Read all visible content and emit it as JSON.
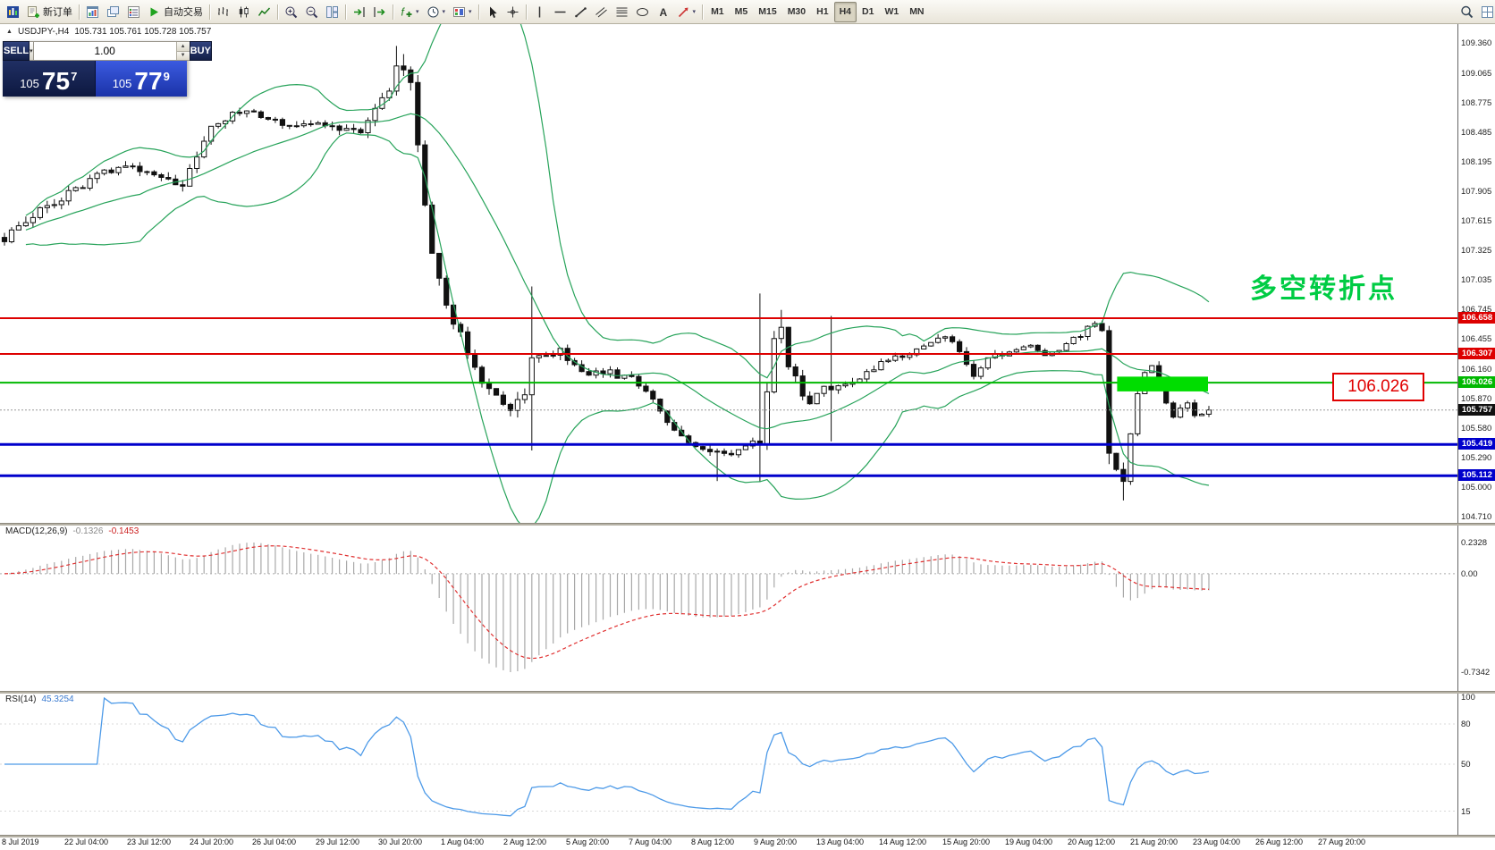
{
  "toolbar": {
    "active_timeframe": "H4",
    "items": [
      {
        "type": "button",
        "name": "app-menu-button",
        "icon": "app-logo"
      },
      {
        "type": "button",
        "name": "new-order-button",
        "icon": "new-order",
        "label": "新订单"
      },
      {
        "type": "sep"
      },
      {
        "type": "button",
        "name": "chart-windows-button",
        "icon": "chart-window"
      },
      {
        "type": "button",
        "name": "profiles-button",
        "icon": "cascade-windows"
      },
      {
        "type": "button",
        "name": "market-watch-button",
        "icon": "market-watch"
      },
      {
        "type": "button",
        "name": "autotrading-button",
        "icon": "autotrade-play",
        "label": "自动交易"
      },
      {
        "type": "sep"
      },
      {
        "type": "button",
        "name": "bar-chart-button",
        "icon": "ohlc-bars"
      },
      {
        "type": "button",
        "name": "candlestick-chart-button",
        "icon": "candlesticks"
      },
      {
        "type": "button",
        "name": "line-chart-button",
        "icon": "line-chart"
      },
      {
        "type": "sep"
      },
      {
        "type": "button",
        "name": "zoom-in-button",
        "icon": "zoom-in"
      },
      {
        "type": "button",
        "name": "zoom-out-button",
        "icon": "zoom-out"
      },
      {
        "type": "button",
        "name": "tile-windows-button",
        "icon": "tile-windows"
      },
      {
        "type": "sep"
      },
      {
        "type": "button",
        "name": "auto-scroll-button",
        "icon": "auto-scroll"
      },
      {
        "type": "button",
        "name": "chart-shift-button",
        "icon": "chart-shift"
      },
      {
        "type": "sep"
      },
      {
        "type": "button",
        "name": "indicators-button",
        "icon": "function-plus",
        "caret": true
      },
      {
        "type": "button",
        "name": "periods-button",
        "icon": "clock",
        "caret": true
      },
      {
        "type": "button",
        "name": "templates-button",
        "icon": "template",
        "caret": true
      },
      {
        "type": "sep"
      },
      {
        "type": "button",
        "name": "cursor-button",
        "icon": "cursor-arrow"
      },
      {
        "type": "button",
        "name": "crosshair-button",
        "icon": "crosshair"
      },
      {
        "type": "sep"
      },
      {
        "type": "button",
        "name": "vertical-line-button",
        "icon": "vertical-line"
      },
      {
        "type": "button",
        "name": "horizontal-line-button",
        "icon": "horizontal-line"
      },
      {
        "type": "button",
        "name": "trendline-button",
        "icon": "trend-line"
      },
      {
        "type": "button",
        "name": "equidistant-channel-button",
        "icon": "channel"
      },
      {
        "type": "button",
        "name": "fibonacci-button",
        "icon": "fibonacci"
      },
      {
        "type": "button",
        "name": "shapes-button",
        "icon": "ellipse"
      },
      {
        "type": "button",
        "name": "text-label-button",
        "icon": "text-a"
      },
      {
        "type": "button",
        "name": "arrows-button",
        "icon": "arrow",
        "caret": true
      },
      {
        "type": "sep"
      },
      {
        "type": "tf",
        "label": "M1"
      },
      {
        "type": "tf",
        "label": "M5"
      },
      {
        "type": "tf",
        "label": "M15"
      },
      {
        "type": "tf",
        "label": "M30"
      },
      {
        "type": "tf",
        "label": "H1"
      },
      {
        "type": "tf",
        "label": "H4"
      },
      {
        "type": "tf",
        "label": "D1"
      },
      {
        "type": "tf",
        "label": "W1"
      },
      {
        "type": "tf",
        "label": "MN"
      },
      {
        "type": "spacer"
      },
      {
        "type": "button",
        "name": "search-button",
        "icon": "magnifier"
      },
      {
        "type": "button",
        "name": "data-window-button",
        "icon": "data-window"
      }
    ]
  },
  "chart": {
    "expand_marker": "▲",
    "title": "USDJPY-,H4",
    "ohlc": "105.731 105.761 105.728 105.757"
  },
  "trade_panel": {
    "sell_label": "SELL",
    "buy_label": "BUY",
    "volume": "1.00",
    "sell_price": {
      "small": "105",
      "big": "75",
      "sup": "7"
    },
    "buy_price": {
      "small": "105",
      "big": "77",
      "sup": "9"
    }
  },
  "price_scale": {
    "ticks": [
      "109.360",
      "109.065",
      "108.775",
      "108.485",
      "108.195",
      "107.905",
      "107.615",
      "107.325",
      "107.035",
      "106.745",
      "106.455",
      "106.160",
      "105.870",
      "105.580",
      "105.290",
      "105.000",
      "104.710"
    ]
  },
  "levels": [
    {
      "price": 106.658,
      "label": "106.658",
      "color": "#dd0000",
      "width": 2
    },
    {
      "price": 106.307,
      "label": "106.307",
      "color": "#dd0000",
      "width": 2
    },
    {
      "price": 106.026,
      "label": "106.026",
      "color": "#00b800",
      "width": 2
    },
    {
      "price": 105.419,
      "label": "105.419",
      "color": "#0000cc",
      "width": 3
    },
    {
      "price": 105.112,
      "label": "105.112",
      "color": "#0000cc",
      "width": 3
    }
  ],
  "current_price": {
    "value": 105.757,
    "label": "105.757"
  },
  "annotations": {
    "cn_text": "多空转折点",
    "price_callout": "106.026",
    "green_box": {
      "i0": 156.5,
      "i1": 168.5,
      "p_top": 106.085,
      "p_bot": 105.94,
      "color": "#00dd00"
    }
  },
  "macd": {
    "name": "MACD(12,26,9)",
    "value_main": "-0.1326",
    "value_signal": "-0.1453",
    "ticks": [
      "0.2328",
      "0.00",
      "-0.7342"
    ]
  },
  "rsi": {
    "name": "RSI(14)",
    "value": "45.3254",
    "ticks": [
      "100",
      "80",
      "50",
      "15"
    ]
  },
  "time_axis": {
    "labels": [
      "8 Jul 2019",
      "22 Jul 04:00",
      "23 Jul 12:00",
      "24 Jul 20:00",
      "26 Jul 04:00",
      "29 Jul 12:00",
      "30 Jul 20:00",
      "1 Aug 04:00",
      "2 Aug 12:00",
      "5 Aug 20:00",
      "7 Aug 04:00",
      "8 Aug 12:00",
      "9 Aug 20:00",
      "13 Aug 04:00",
      "14 Aug 12:00",
      "15 Aug 20:00",
      "19 Aug 04:00",
      "20 Aug 12:00",
      "21 Aug 20:00",
      "23 Aug 04:00",
      "26 Aug 12:00",
      "27 Aug 20:00"
    ]
  },
  "chart_data": {
    "type": "candlestick",
    "symbol": "USDJPY-",
    "period": "H4",
    "title": "USDJPY-,H4",
    "ylim": [
      104.71,
      109.36
    ],
    "n_candles": 170,
    "last_close": 105.757,
    "seed": 20190827,
    "bollinger": {
      "period": 20,
      "dev": 2
    },
    "macd_params": {
      "fast": 12,
      "slow": 26,
      "signal": 9
    },
    "rsi_period": 14,
    "macd_axis": {
      "max": 0.2328,
      "min": -0.7342
    },
    "horizontal_levels": [
      106.658,
      106.307,
      106.026,
      105.419,
      105.112
    ],
    "price_anchors": [
      [
        0,
        107.45,
        0.1
      ],
      [
        5,
        107.7,
        0.1
      ],
      [
        12,
        108.0,
        0.1
      ],
      [
        16,
        108.15,
        0.09
      ],
      [
        20,
        108.1,
        0.08
      ],
      [
        25,
        107.95,
        0.09
      ],
      [
        29,
        108.55,
        0.09
      ],
      [
        33,
        108.7,
        0.08
      ],
      [
        39,
        108.55,
        0.08
      ],
      [
        44,
        108.6,
        0.08
      ],
      [
        50,
        108.45,
        0.08
      ],
      [
        54,
        108.9,
        0.14
      ],
      [
        55,
        109.15,
        0.16
      ],
      [
        57,
        109.0,
        0.16
      ],
      [
        58,
        108.3,
        0.22
      ],
      [
        60,
        107.35,
        0.18
      ],
      [
        61,
        107.0,
        0.14
      ],
      [
        63,
        106.6,
        0.12
      ],
      [
        65,
        106.35,
        0.12
      ],
      [
        67,
        106.05,
        0.12
      ],
      [
        69,
        105.95,
        0.12
      ],
      [
        71,
        105.7,
        0.14
      ],
      [
        73,
        105.9,
        0.18
      ],
      [
        74,
        106.35,
        0.18
      ],
      [
        76,
        106.3,
        0.1
      ],
      [
        78,
        106.35,
        0.09
      ],
      [
        81,
        106.1,
        0.09
      ],
      [
        83,
        106.15,
        0.08
      ],
      [
        86,
        106.1,
        0.08
      ],
      [
        88,
        106.05,
        0.08
      ],
      [
        91,
        105.85,
        0.08
      ],
      [
        94,
        105.55,
        0.09
      ],
      [
        96,
        105.45,
        0.08
      ],
      [
        99,
        105.35,
        0.08
      ],
      [
        101,
        105.3,
        0.08
      ],
      [
        104,
        105.4,
        0.08
      ],
      [
        106,
        105.45,
        0.16
      ],
      [
        107,
        105.9,
        0.18
      ],
      [
        108,
        106.45,
        0.14
      ],
      [
        109,
        106.55,
        0.1
      ],
      [
        110,
        106.2,
        0.12
      ],
      [
        112,
        105.9,
        0.1
      ],
      [
        113,
        105.85,
        0.08
      ],
      [
        115,
        106.0,
        0.1
      ],
      [
        116,
        105.95,
        0.12
      ],
      [
        118,
        106.0,
        0.08
      ],
      [
        121,
        106.1,
        0.08
      ],
      [
        124,
        106.25,
        0.07
      ],
      [
        127,
        106.3,
        0.07
      ],
      [
        129,
        106.4,
        0.07
      ],
      [
        132,
        106.45,
        0.07
      ],
      [
        134,
        106.35,
        0.07
      ],
      [
        136,
        106.1,
        0.08
      ],
      [
        138,
        106.25,
        0.07
      ],
      [
        141,
        106.35,
        0.07
      ],
      [
        143,
        106.4,
        0.06
      ],
      [
        146,
        106.3,
        0.06
      ],
      [
        149,
        106.4,
        0.06
      ],
      [
        151,
        106.5,
        0.06
      ],
      [
        153,
        106.6,
        0.07
      ],
      [
        154,
        106.5,
        0.1
      ],
      [
        155,
        105.4,
        0.22
      ],
      [
        156,
        105.2,
        0.14
      ],
      [
        157,
        105.1,
        0.12
      ],
      [
        158,
        105.55,
        0.12
      ],
      [
        159,
        105.9,
        0.1
      ],
      [
        160,
        106.1,
        0.08
      ],
      [
        161,
        106.2,
        0.08
      ],
      [
        162,
        106.05,
        0.08
      ],
      [
        163,
        105.8,
        0.08
      ],
      [
        164,
        105.7,
        0.07
      ],
      [
        166,
        105.8,
        0.06
      ],
      [
        167,
        105.72,
        0.06
      ],
      [
        169,
        105.757,
        0.05
      ]
    ],
    "spikes": [
      {
        "i": 55,
        "high": 109.33
      },
      {
        "i": 56,
        "high": 109.25
      },
      {
        "i": 74,
        "high": 106.97,
        "low": 105.36
      },
      {
        "i": 100,
        "low": 105.06
      },
      {
        "i": 106,
        "high": 106.9,
        "low": 105.05
      },
      {
        "i": 109,
        "high": 106.74
      },
      {
        "i": 116,
        "high": 106.68,
        "low": 105.45
      },
      {
        "i": 155,
        "low": 105.3
      },
      {
        "i": 157,
        "low": 104.87
      }
    ]
  }
}
